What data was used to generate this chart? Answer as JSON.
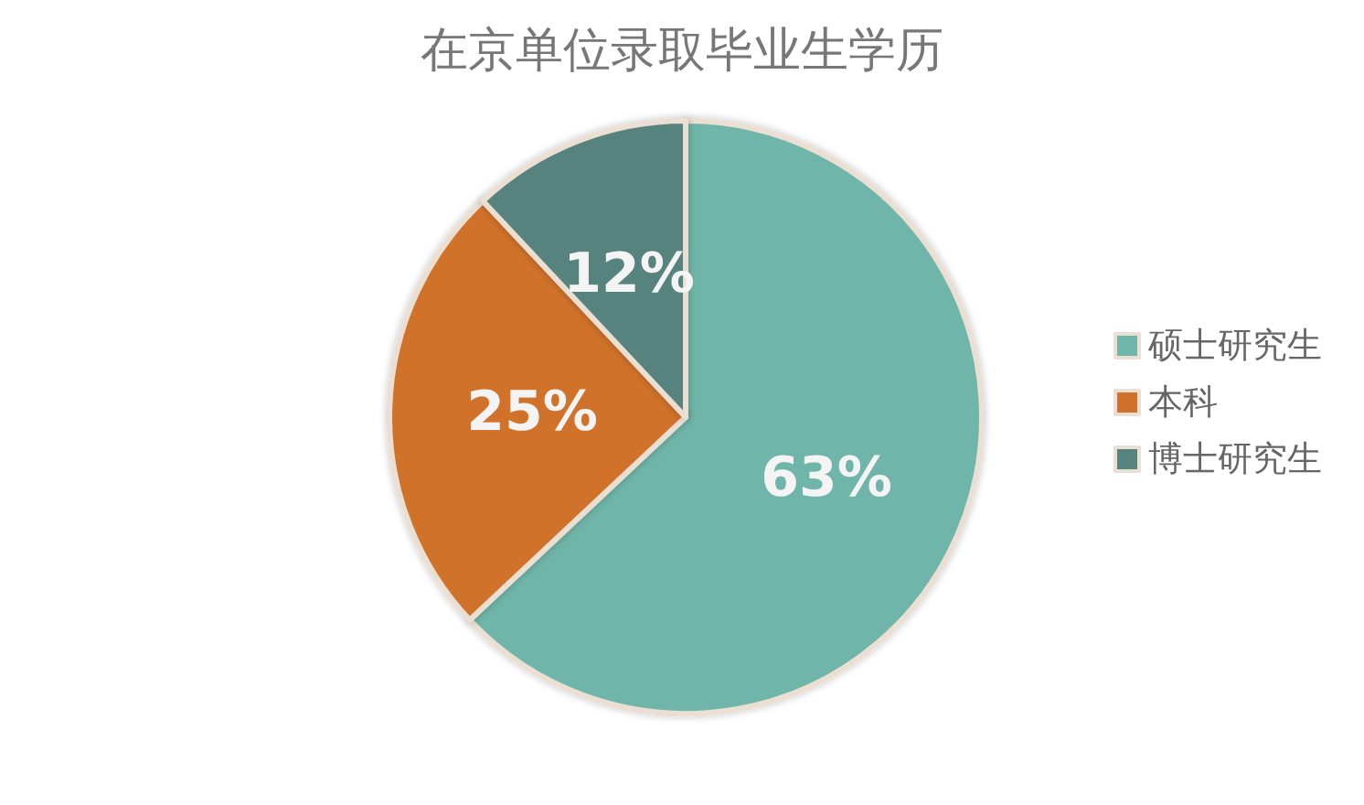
{
  "chart_data": {
    "type": "pie",
    "title": "在京单位录取毕业生学历",
    "categories": [
      "硕士研究生",
      "本科",
      "博士研究生"
    ],
    "values": [
      63,
      25,
      12
    ],
    "colors": [
      "#6fb5a9",
      "#d0722c",
      "#57837e"
    ],
    "value_labels": [
      "63%",
      "25%",
      "12%"
    ],
    "legend": "right"
  }
}
